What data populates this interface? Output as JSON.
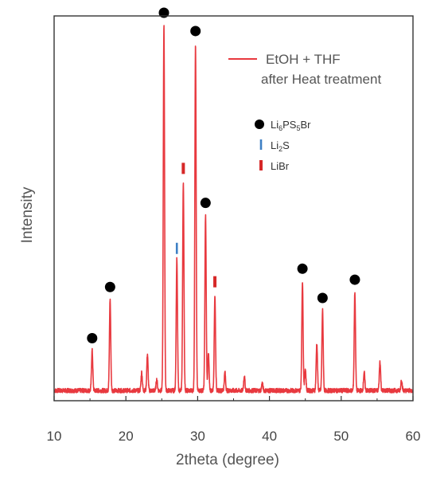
{
  "chart_data": {
    "type": "line",
    "title": "",
    "xlabel": "2theta (degree)",
    "ylabel": "Intensity",
    "xlim": [
      10,
      60
    ],
    "ylim": [
      0,
      100
    ],
    "x_ticks": [
      10,
      20,
      30,
      40,
      50,
      60
    ],
    "y_ticks_shown": false,
    "grid": false,
    "legend": {
      "placement": "top-right",
      "entries": [
        "EtOH + THF",
        "after Heat treatment"
      ]
    },
    "colors": {
      "series": "#e8393f",
      "axis": "#333333",
      "li6ps5br": "#000000",
      "li2s": "#3d7fc4",
      "libr": "#d62828"
    },
    "series": [
      {
        "name": "EtOH + THF after Heat treatment",
        "peaks": [
          {
            "x": 15.3,
            "y": 11
          },
          {
            "x": 17.8,
            "y": 25
          },
          {
            "x": 22.2,
            "y": 5
          },
          {
            "x": 23.0,
            "y": 10
          },
          {
            "x": 24.3,
            "y": 3
          },
          {
            "x": 25.3,
            "y": 100
          },
          {
            "x": 27.1,
            "y": 36
          },
          {
            "x": 28.0,
            "y": 57
          },
          {
            "x": 29.7,
            "y": 95
          },
          {
            "x": 31.1,
            "y": 48
          },
          {
            "x": 31.5,
            "y": 10
          },
          {
            "x": 32.4,
            "y": 26
          },
          {
            "x": 33.8,
            "y": 5
          },
          {
            "x": 36.5,
            "y": 4
          },
          {
            "x": 39.0,
            "y": 2
          },
          {
            "x": 44.6,
            "y": 30
          },
          {
            "x": 45.0,
            "y": 6
          },
          {
            "x": 46.6,
            "y": 13
          },
          {
            "x": 47.4,
            "y": 22
          },
          {
            "x": 51.9,
            "y": 27
          },
          {
            "x": 53.2,
            "y": 5
          },
          {
            "x": 55.4,
            "y": 8
          },
          {
            "x": 58.4,
            "y": 3
          }
        ]
      }
    ],
    "phase_legend": [
      {
        "symbol": "circle",
        "label": "Li",
        "sub1": "6",
        "mid": "PS",
        "sub2": "5",
        "tail": "Br"
      },
      {
        "symbol": "blue-bar",
        "label": "Li",
        "sub1": "2",
        "mid": "S",
        "sub2": "",
        "tail": ""
      },
      {
        "symbol": "red-bar",
        "label": "LiBr",
        "sub1": "",
        "mid": "",
        "sub2": "",
        "tail": ""
      }
    ],
    "markers": {
      "li6ps5br_circles": [
        {
          "x": 15.3
        },
        {
          "x": 17.8
        },
        {
          "x": 25.3
        },
        {
          "x": 29.7
        },
        {
          "x": 31.1
        },
        {
          "x": 44.6
        },
        {
          "x": 47.4
        },
        {
          "x": 51.9
        }
      ],
      "li2s_bars": [
        {
          "x": 27.1
        }
      ],
      "libr_bars": [
        {
          "x": 28.0
        },
        {
          "x": 32.4
        }
      ]
    }
  }
}
